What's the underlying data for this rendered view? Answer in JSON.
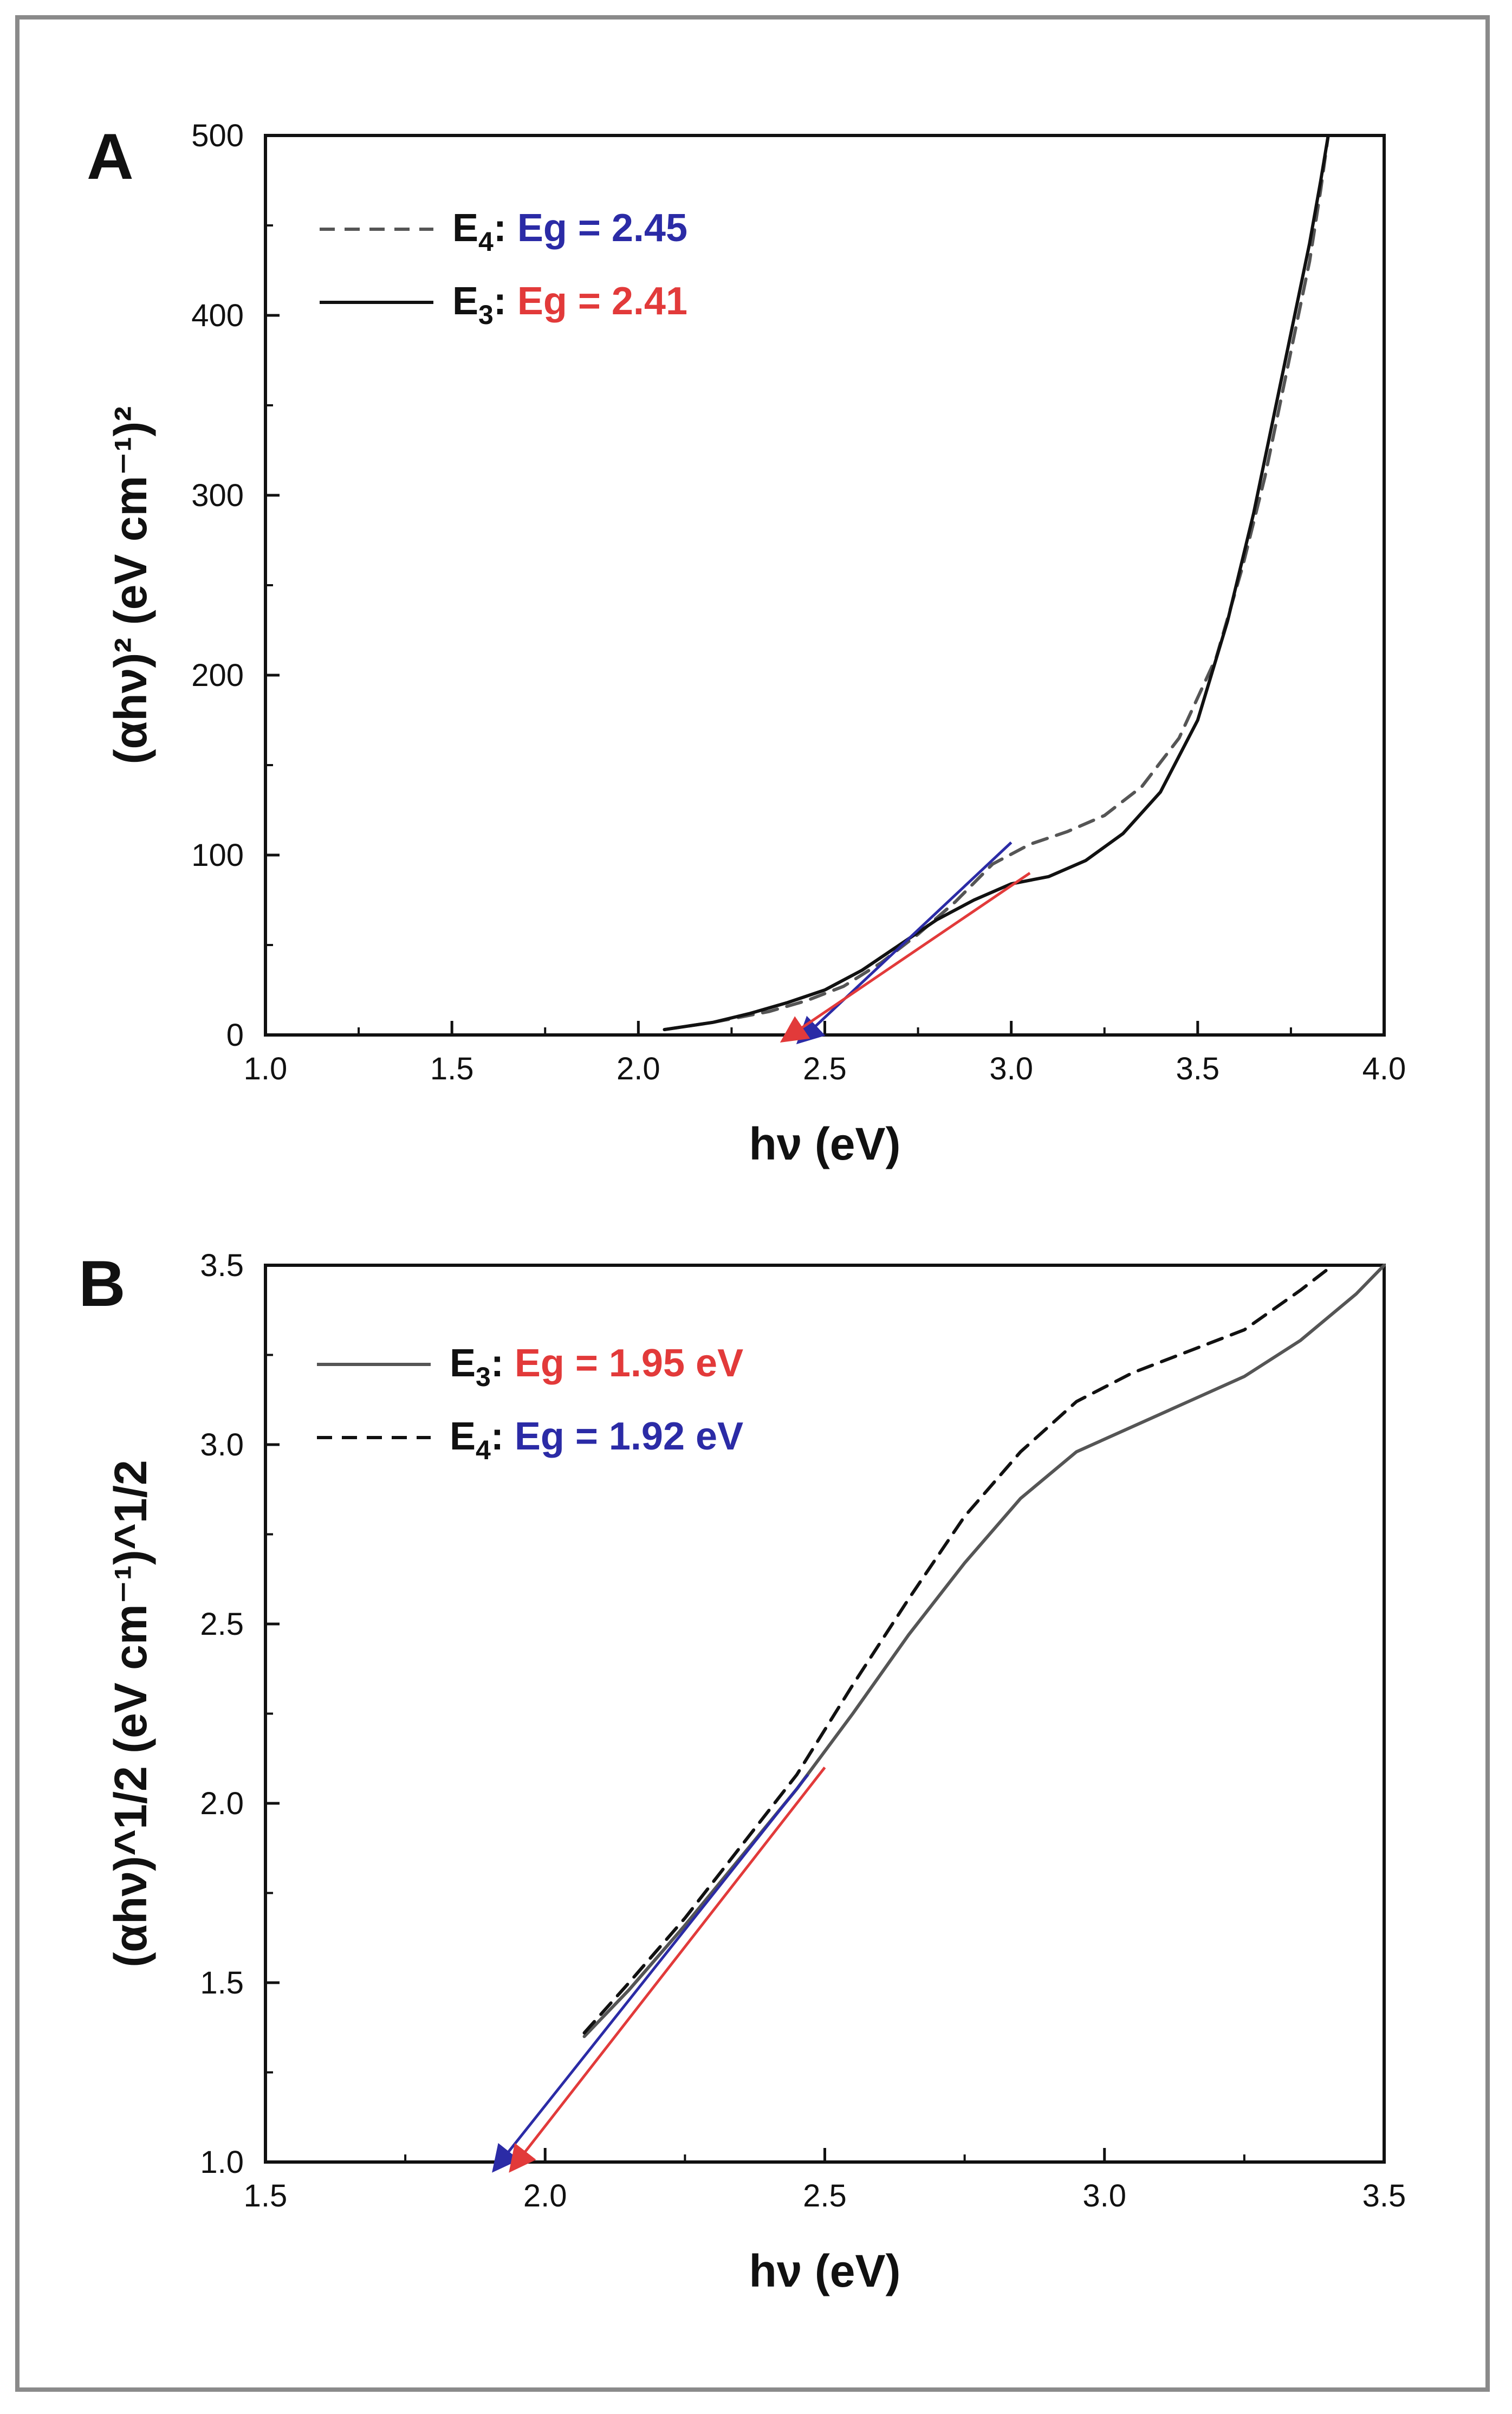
{
  "chart_data": [
    {
      "type": "line",
      "panel_label": "A",
      "xlabel": "hν (eV)",
      "ylabel": "(αhν)² (eV cm⁻¹)²",
      "xlim": [
        1.0,
        4.0
      ],
      "ylim": [
        0,
        500
      ],
      "xticks": [
        1.0,
        1.5,
        2.0,
        2.5,
        3.0,
        3.5,
        4.0
      ],
      "yticks": [
        0,
        100,
        200,
        300,
        400,
        500
      ],
      "xtick_labels": [
        "1.0",
        "1.5",
        "2.0",
        "2.5",
        "3.0",
        "3.5",
        "4.0"
      ],
      "ytick_labels": [
        "0",
        "100",
        "200",
        "300",
        "400",
        "500"
      ],
      "legend_position": "top-left",
      "series": [
        {
          "name": "E4",
          "legend_label_prefix": "E",
          "legend_label_sub": "4",
          "legend_label_value": "Eg = 2.45",
          "value_color": "#2b2ba6",
          "line_style": "dashed",
          "color": "#555555",
          "x": [
            2.07,
            2.2,
            2.35,
            2.45,
            2.55,
            2.65,
            2.75,
            2.85,
            2.95,
            3.05,
            3.15,
            3.25,
            3.35,
            3.45,
            3.55,
            3.62,
            3.68,
            3.73,
            3.77,
            3.8,
            3.83,
            3.85
          ],
          "y": [
            3,
            7,
            13,
            19,
            27,
            40,
            56,
            74,
            95,
            106,
            113,
            122,
            138,
            165,
            210,
            260,
            310,
            360,
            400,
            430,
            470,
            500
          ]
        },
        {
          "name": "E3",
          "legend_label_prefix": "E",
          "legend_label_sub": "3",
          "legend_label_value": "Eg = 2.41",
          "value_color": "#e23a3a",
          "line_style": "solid",
          "color": "#111111",
          "x": [
            2.07,
            2.2,
            2.3,
            2.4,
            2.5,
            2.6,
            2.7,
            2.8,
            2.9,
            3.0,
            3.1,
            3.2,
            3.3,
            3.4,
            3.5,
            3.58,
            3.65,
            3.7,
            3.75,
            3.8,
            3.83,
            3.85
          ],
          "y": [
            3,
            7,
            12,
            18,
            25,
            36,
            50,
            64,
            75,
            84,
            88,
            97,
            112,
            135,
            175,
            230,
            290,
            340,
            390,
            440,
            475,
            500
          ]
        }
      ],
      "fit_lines": [
        {
          "name": "E4 fit",
          "color": "#2b2ba6",
          "x": [
            2.45,
            3.0
          ],
          "y": [
            0,
            107
          ]
        },
        {
          "name": "E3 fit",
          "color": "#e23a3a",
          "x": [
            2.41,
            3.05
          ],
          "y": [
            0,
            90
          ]
        }
      ]
    },
    {
      "type": "line",
      "panel_label": "B",
      "xlabel": "hν (eV)",
      "ylabel": "(αhν)^1/2 (eV cm⁻¹)^1/2",
      "xlim": [
        1.5,
        3.5
      ],
      "ylim": [
        1.0,
        3.5
      ],
      "xticks": [
        1.5,
        2.0,
        2.5,
        3.0,
        3.5
      ],
      "yticks": [
        1.0,
        1.5,
        2.0,
        2.5,
        3.0,
        3.5
      ],
      "xtick_labels": [
        "1.5",
        "2.0",
        "2.5",
        "3.0",
        "3.5"
      ],
      "ytick_labels": [
        "1.0",
        "1.5",
        "2.0",
        "2.5",
        "3.0",
        "3.5"
      ],
      "legend_position": "top-left",
      "series": [
        {
          "name": "E3",
          "legend_label_prefix": "E",
          "legend_label_sub": "3",
          "legend_label_value": "Eg = 1.95 eV",
          "value_color": "#e23a3a",
          "line_style": "solid",
          "color": "#555555",
          "x": [
            2.07,
            2.15,
            2.25,
            2.35,
            2.45,
            2.55,
            2.65,
            2.75,
            2.85,
            2.95,
            3.05,
            3.15,
            3.25,
            3.35,
            3.45,
            3.5
          ],
          "y": [
            1.35,
            1.48,
            1.66,
            1.85,
            2.04,
            2.25,
            2.47,
            2.67,
            2.85,
            2.98,
            3.05,
            3.12,
            3.19,
            3.29,
            3.42,
            3.5
          ]
        },
        {
          "name": "E4",
          "legend_label_prefix": "E",
          "legend_label_sub": "4",
          "legend_label_value": "Eg = 1.92 eV",
          "value_color": "#2b2ba6",
          "line_style": "dashed",
          "color": "#111111",
          "x": [
            2.07,
            2.15,
            2.25,
            2.35,
            2.45,
            2.55,
            2.65,
            2.75,
            2.85,
            2.95,
            3.05,
            3.15,
            3.25,
            3.35,
            3.4
          ],
          "y": [
            1.36,
            1.5,
            1.68,
            1.88,
            2.08,
            2.33,
            2.57,
            2.8,
            2.98,
            3.12,
            3.2,
            3.26,
            3.32,
            3.43,
            3.49
          ]
        }
      ],
      "fit_lines": [
        {
          "name": "E4 fit",
          "color": "#2b2ba6",
          "x": [
            1.92,
            2.47
          ],
          "y": [
            1.0,
            2.08
          ]
        },
        {
          "name": "E3 fit",
          "color": "#e23a3a",
          "x": [
            1.95,
            2.5
          ],
          "y": [
            1.0,
            2.1
          ]
        }
      ]
    }
  ]
}
